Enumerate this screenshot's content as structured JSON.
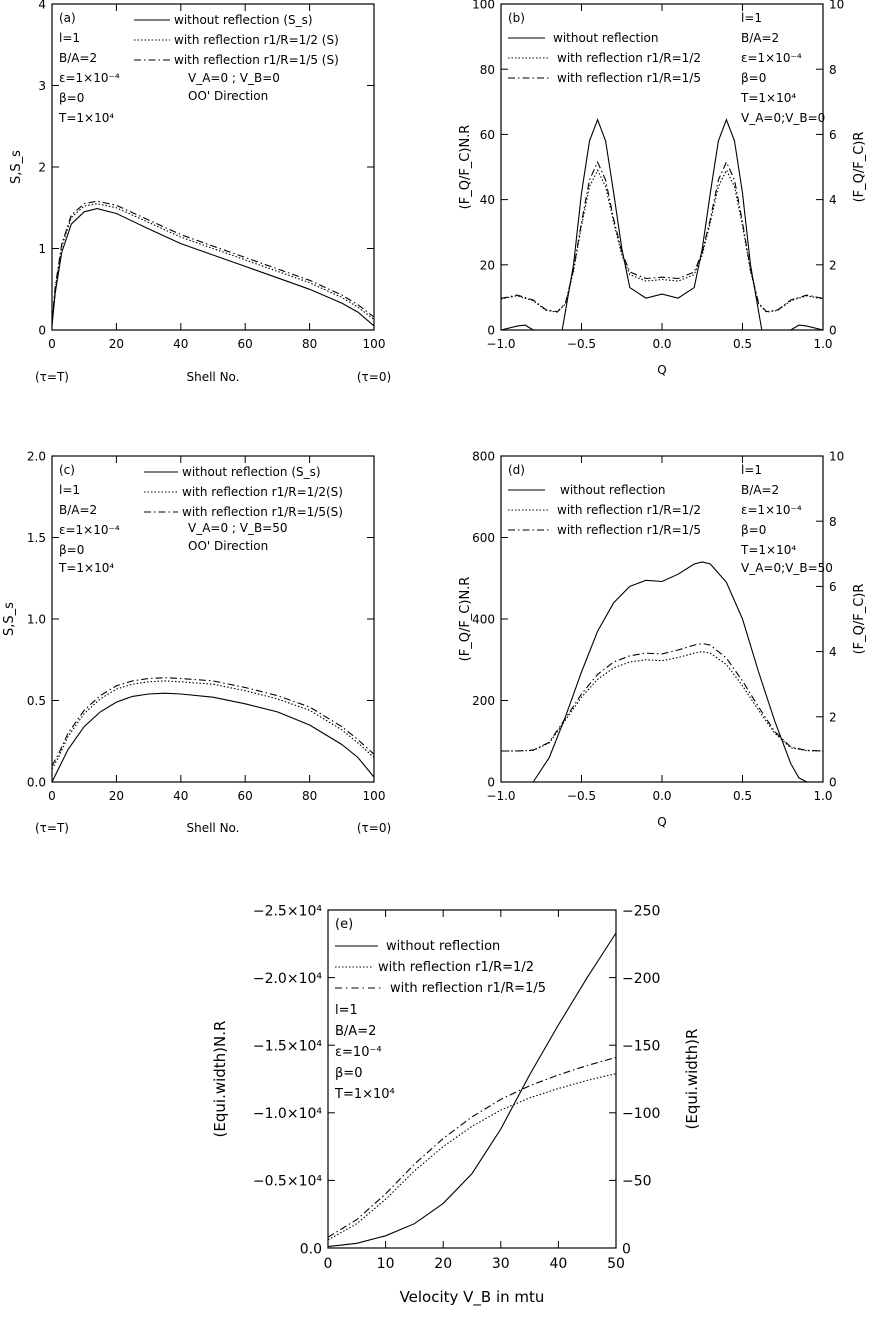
{
  "chart_data": [
    {
      "type": "line",
      "panel": "(a)",
      "xlabel": "Shell No.",
      "ylabel": "S,S_s",
      "xlim": [
        0,
        100
      ],
      "ylim": [
        0,
        4
      ],
      "xticks": [
        0,
        20,
        40,
        60,
        80,
        100
      ],
      "yticks": [
        0,
        1,
        2,
        3,
        4
      ],
      "xtick_labels": [
        "0",
        "20",
        "40",
        "60",
        "80",
        "100"
      ],
      "ytick_labels": [
        "0",
        "1",
        "2",
        "3",
        "4"
      ],
      "x_end_notes": [
        "(τ=T)",
        "(τ=0)"
      ],
      "params": [
        "l=1",
        "B/A=2",
        "ε=1×10⁻⁴",
        "β=0",
        "T=1×10⁴"
      ],
      "extra_notes": [
        "V_A=0 ; V_B=0",
        "OO' Direction"
      ],
      "legend": [
        "without reflection (S_s)",
        "with reflection r1/R=1/2 (S)",
        "with reflection r1/R=1/5 (S)"
      ],
      "series": [
        {
          "name": "without reflection (S_s)",
          "style": "solid",
          "x": [
            0,
            1,
            3,
            6,
            10,
            14,
            20,
            30,
            40,
            50,
            60,
            70,
            80,
            90,
            95,
            100
          ],
          "y": [
            0.05,
            0.45,
            0.95,
            1.3,
            1.45,
            1.49,
            1.43,
            1.24,
            1.06,
            0.92,
            0.78,
            0.64,
            0.5,
            0.33,
            0.22,
            0.05
          ]
        },
        {
          "name": "with reflection r1/R=1/2 (S)",
          "style": "dotted",
          "x": [
            0,
            1,
            3,
            6,
            10,
            14,
            20,
            30,
            40,
            50,
            60,
            70,
            80,
            90,
            95,
            100
          ],
          "y": [
            0.08,
            0.5,
            1.02,
            1.38,
            1.52,
            1.55,
            1.5,
            1.32,
            1.14,
            1.0,
            0.86,
            0.72,
            0.58,
            0.4,
            0.28,
            0.13
          ]
        },
        {
          "name": "with reflection r1/R=1/5 (S)",
          "style": "dashdot",
          "x": [
            0,
            1,
            3,
            6,
            10,
            14,
            20,
            30,
            40,
            50,
            60,
            70,
            80,
            90,
            95,
            100
          ],
          "y": [
            0.1,
            0.53,
            1.05,
            1.41,
            1.55,
            1.58,
            1.53,
            1.35,
            1.17,
            1.03,
            0.89,
            0.75,
            0.61,
            0.43,
            0.31,
            0.16
          ]
        }
      ]
    },
    {
      "type": "line",
      "panel": "(b)",
      "xlabel": "Q",
      "ylabel": "(F_Q/F_C)N.R",
      "ylabel_right": "(F_Q/F_C)R",
      "xlim": [
        -1,
        1
      ],
      "ylim": [
        0,
        100
      ],
      "ylim_right": [
        0,
        10
      ],
      "xticks": [
        -1,
        -0.5,
        0,
        0.5,
        1
      ],
      "yticks": [
        0,
        20,
        40,
        60,
        80,
        100
      ],
      "yticks_right": [
        0,
        2,
        4,
        6,
        8,
        10
      ],
      "xtick_labels": [
        "−1.0",
        "−0.5",
        "0.0",
        "0.5",
        "1.0"
      ],
      "ytick_labels": [
        "0",
        "20",
        "40",
        "60",
        "80",
        "100"
      ],
      "ytick_labels_right": [
        "0",
        "2",
        "4",
        "6",
        "8",
        "10"
      ],
      "params": [
        "l=1",
        "B/A=2",
        "ε=1×10⁻⁴",
        "β=0",
        "T=1×10⁴",
        "V_A=0;V_B=0"
      ],
      "legend": [
        "without reflection",
        "with reflection r1/R=1/2",
        "with reflection r1/R=1/5"
      ],
      "series": [
        {
          "name": "without reflection",
          "style": "solid",
          "x": [
            -1,
            -0.9,
            -0.85,
            -0.8,
            -0.7,
            -0.62,
            -0.55,
            -0.5,
            -0.45,
            -0.4,
            -0.35,
            -0.3,
            -0.25,
            -0.2,
            -0.1,
            0,
            0.1,
            0.2,
            0.25,
            0.3,
            0.35,
            0.4,
            0.45,
            0.5,
            0.55,
            0.62,
            0.7,
            0.8,
            0.85,
            0.9,
            1
          ],
          "y": [
            0,
            1.2,
            1.5,
            0,
            0,
            0,
            20,
            42,
            58,
            64.5,
            58,
            42,
            25,
            13,
            9.8,
            11,
            9.8,
            13,
            25,
            42,
            58,
            64.5,
            58,
            42,
            20,
            0,
            0,
            0,
            1.5,
            1.2,
            0
          ]
        },
        {
          "name": "with reflection r1/R=1/2",
          "style": "dotted",
          "axis": "right",
          "x": [
            -1,
            -0.9,
            -0.8,
            -0.72,
            -0.65,
            -0.6,
            -0.55,
            -0.5,
            -0.45,
            -0.4,
            -0.35,
            -0.3,
            -0.25,
            -0.2,
            -0.1,
            0,
            0.1,
            0.2,
            0.25,
            0.3,
            0.35,
            0.4,
            0.45,
            0.5,
            0.55,
            0.6,
            0.65,
            0.72,
            0.8,
            0.9,
            1
          ],
          "y": [
            0.95,
            1.05,
            0.9,
            0.6,
            0.55,
            0.8,
            1.8,
            3.2,
            4.4,
            4.9,
            4.4,
            3.3,
            2.3,
            1.7,
            1.5,
            1.55,
            1.5,
            1.7,
            2.3,
            3.3,
            4.4,
            4.9,
            4.4,
            3.2,
            1.8,
            0.8,
            0.55,
            0.6,
            0.9,
            1.05,
            0.95
          ]
        },
        {
          "name": "with reflection r1/R=1/5",
          "style": "dashdot",
          "axis": "right",
          "x": [
            -1,
            -0.9,
            -0.8,
            -0.72,
            -0.65,
            -0.6,
            -0.55,
            -0.5,
            -0.45,
            -0.4,
            -0.35,
            -0.3,
            -0.25,
            -0.2,
            -0.1,
            0,
            0.1,
            0.2,
            0.25,
            0.3,
            0.35,
            0.4,
            0.45,
            0.5,
            0.55,
            0.6,
            0.65,
            0.72,
            0.8,
            0.9,
            1
          ],
          "y": [
            0.97,
            1.07,
            0.92,
            0.62,
            0.56,
            0.82,
            1.85,
            3.3,
            4.6,
            5.15,
            4.6,
            3.4,
            2.4,
            1.78,
            1.58,
            1.62,
            1.58,
            1.78,
            2.4,
            3.4,
            4.6,
            5.15,
            4.6,
            3.3,
            1.85,
            0.82,
            0.56,
            0.62,
            0.92,
            1.07,
            0.97
          ]
        }
      ]
    },
    {
      "type": "line",
      "panel": "(c)",
      "xlabel": "Shell No.",
      "ylabel": "S,S_s",
      "xlim": [
        0,
        100
      ],
      "ylim": [
        0,
        2
      ],
      "xticks": [
        0,
        20,
        40,
        60,
        80,
        100
      ],
      "yticks": [
        0,
        0.5,
        1,
        1.5,
        2
      ],
      "xtick_labels": [
        "0",
        "20",
        "40",
        "60",
        "80",
        "100"
      ],
      "ytick_labels": [
        "0.0",
        "0.5",
        "1.0",
        "1.5",
        "2.0"
      ],
      "x_end_notes": [
        "(τ=T)",
        "(τ=0)"
      ],
      "params": [
        "l=1",
        "B/A=2",
        "ε=1×10⁻⁴",
        "β=0",
        "T=1×10⁴"
      ],
      "extra_notes": [
        "V_A=0 ; V_B=50",
        "OO' Direction"
      ],
      "legend": [
        "without reflection (S_s)",
        "with reflection r1/R=1/2(S)",
        "with reflection r1/R=1/5(S)"
      ],
      "series": [
        {
          "name": "without reflection (S_s)",
          "style": "solid",
          "x": [
            0,
            2,
            5,
            10,
            15,
            20,
            25,
            30,
            35,
            40,
            50,
            60,
            70,
            80,
            90,
            95,
            100
          ],
          "y": [
            0.0,
            0.08,
            0.2,
            0.34,
            0.43,
            0.49,
            0.525,
            0.54,
            0.545,
            0.54,
            0.52,
            0.48,
            0.43,
            0.35,
            0.23,
            0.15,
            0.03
          ]
        },
        {
          "name": "with reflection r1/R=1/2(S)",
          "style": "dotted",
          "x": [
            0,
            2,
            5,
            10,
            15,
            20,
            25,
            30,
            35,
            40,
            50,
            60,
            70,
            80,
            90,
            95,
            100
          ],
          "y": [
            0.08,
            0.15,
            0.28,
            0.42,
            0.51,
            0.57,
            0.6,
            0.615,
            0.62,
            0.615,
            0.6,
            0.56,
            0.51,
            0.44,
            0.32,
            0.24,
            0.15
          ]
        },
        {
          "name": "with reflection r1/R=1/5(S)",
          "style": "dashdot",
          "x": [
            0,
            2,
            5,
            10,
            15,
            20,
            25,
            30,
            35,
            40,
            50,
            60,
            70,
            80,
            90,
            95,
            100
          ],
          "y": [
            0.1,
            0.17,
            0.3,
            0.44,
            0.53,
            0.59,
            0.62,
            0.635,
            0.64,
            0.635,
            0.62,
            0.58,
            0.53,
            0.46,
            0.34,
            0.26,
            0.17
          ]
        }
      ]
    },
    {
      "type": "line",
      "panel": "(d)",
      "xlabel": "Q",
      "ylabel": "(F_Q/F_C)N.R",
      "ylabel_right": "(F_Q/F_C)R",
      "xlim": [
        -1,
        1
      ],
      "ylim": [
        0,
        800
      ],
      "ylim_right": [
        0,
        10
      ],
      "xticks": [
        -1,
        -0.5,
        0,
        0.5,
        1
      ],
      "yticks": [
        0,
        200,
        400,
        600,
        800
      ],
      "yticks_right": [
        0,
        2,
        4,
        6,
        8,
        10
      ],
      "xtick_labels": [
        "−1.0",
        "−0.5",
        "0.0",
        "0.5",
        "1.0"
      ],
      "ytick_labels": [
        "0",
        "200",
        "400",
        "600",
        "800"
      ],
      "ytick_labels_right": [
        "0",
        "2",
        "4",
        "6",
        "8",
        "10"
      ],
      "params": [
        "l=1",
        "B/A=2",
        "ε=1×10⁻⁴",
        "β=0",
        "T=1×10⁴",
        "V_A=0;V_B=50"
      ],
      "legend": [
        "without reflection",
        "with reflection r1/R=1/2",
        "with reflection r1/R=1/5"
      ],
      "series": [
        {
          "name": "without reflection",
          "style": "solid",
          "x": [
            -1,
            -0.9,
            -0.8,
            -0.7,
            -0.6,
            -0.5,
            -0.4,
            -0.3,
            -0.2,
            -0.1,
            0,
            0.1,
            0.2,
            0.25,
            0.3,
            0.4,
            0.5,
            0.6,
            0.7,
            0.8,
            0.85,
            0.9,
            1
          ],
          "y": [
            0,
            0,
            0,
            60,
            160,
            270,
            370,
            440,
            480,
            495,
            492,
            510,
            535,
            540,
            535,
            490,
            400,
            270,
            150,
            45,
            10,
            0,
            0
          ]
        },
        {
          "name": "with reflection r1/R=1/2",
          "style": "dotted",
          "axis": "right",
          "x": [
            -1,
            -0.9,
            -0.8,
            -0.7,
            -0.6,
            -0.5,
            -0.4,
            -0.3,
            -0.2,
            -0.1,
            0,
            0.1,
            0.2,
            0.25,
            0.3,
            0.4,
            0.5,
            0.6,
            0.7,
            0.8,
            0.9,
            1
          ],
          "y": [
            0.95,
            0.95,
            0.97,
            1.2,
            1.9,
            2.6,
            3.15,
            3.5,
            3.68,
            3.75,
            3.72,
            3.82,
            3.95,
            4.0,
            3.95,
            3.6,
            2.95,
            2.2,
            1.5,
            1.05,
            0.96,
            0.95
          ]
        },
        {
          "name": "with reflection r1/R=1/5",
          "style": "dashdot",
          "axis": "right",
          "x": [
            -1,
            -0.9,
            -0.8,
            -0.7,
            -0.6,
            -0.5,
            -0.4,
            -0.3,
            -0.2,
            -0.1,
            0,
            0.1,
            0.2,
            0.25,
            0.3,
            0.4,
            0.5,
            0.6,
            0.7,
            0.8,
            0.9,
            1
          ],
          "y": [
            0.95,
            0.95,
            0.98,
            1.22,
            1.95,
            2.7,
            3.3,
            3.68,
            3.87,
            3.95,
            3.93,
            4.05,
            4.2,
            4.25,
            4.2,
            3.8,
            3.1,
            2.3,
            1.55,
            1.07,
            0.97,
            0.95
          ]
        }
      ]
    },
    {
      "type": "line",
      "panel": "(e)",
      "xlabel": "Velocity V_B in mtu",
      "ylabel": "(Equi.width)N.R",
      "ylabel_right": "(Equi.width)R",
      "xlim": [
        0,
        50
      ],
      "ylim": [
        0,
        -25000
      ],
      "ylim_right": [
        0,
        -250
      ],
      "xticks": [
        0,
        10,
        20,
        30,
        40,
        50
      ],
      "yticks": [
        0,
        -5000,
        -10000,
        -15000,
        -20000,
        -25000
      ],
      "yticks_right": [
        0,
        -50,
        -100,
        -150,
        -200,
        -250
      ],
      "xtick_labels": [
        "0",
        "10",
        "20",
        "30",
        "40",
        "50"
      ],
      "ytick_labels": [
        "0.0",
        "−0.5×10⁴",
        "−1.0×10⁴",
        "−1.5×10⁴",
        "−2.0×10⁴",
        "−2.5×10⁴"
      ],
      "ytick_labels_right": [
        "0",
        "−50",
        "−100",
        "−150",
        "−200",
        "−250"
      ],
      "params": [
        "l=1",
        "B/A=2",
        "ε=10⁻⁴",
        "β=0",
        "T=1×10⁴"
      ],
      "legend": [
        "without reflection",
        "with reflection r1/R=1/2",
        "with reflection r1/R=1/5"
      ],
      "series": [
        {
          "name": "without reflection",
          "style": "solid",
          "x": [
            0,
            5,
            10,
            15,
            20,
            25,
            30,
            35,
            40,
            45,
            50
          ],
          "y": [
            -100,
            -350,
            -900,
            -1800,
            -3300,
            -5500,
            -8800,
            -12800,
            -16500,
            -20000,
            -23300
          ]
        },
        {
          "name": "with reflection r1/R=1/2",
          "style": "dotted",
          "axis": "right",
          "x": [
            0,
            5,
            10,
            15,
            20,
            25,
            30,
            35,
            40,
            45,
            50
          ],
          "y": [
            -6,
            -18,
            -36,
            -57,
            -75,
            -90,
            -102,
            -111,
            -118,
            -124,
            -129
          ]
        },
        {
          "name": "with reflection r1/R=1/5",
          "style": "dashdot",
          "axis": "right",
          "x": [
            0,
            5,
            10,
            15,
            20,
            25,
            30,
            35,
            40,
            45,
            50
          ],
          "y": [
            -8,
            -21,
            -40,
            -62,
            -81,
            -97,
            -110,
            -120,
            -128,
            -135,
            -141
          ]
        }
      ]
    }
  ]
}
